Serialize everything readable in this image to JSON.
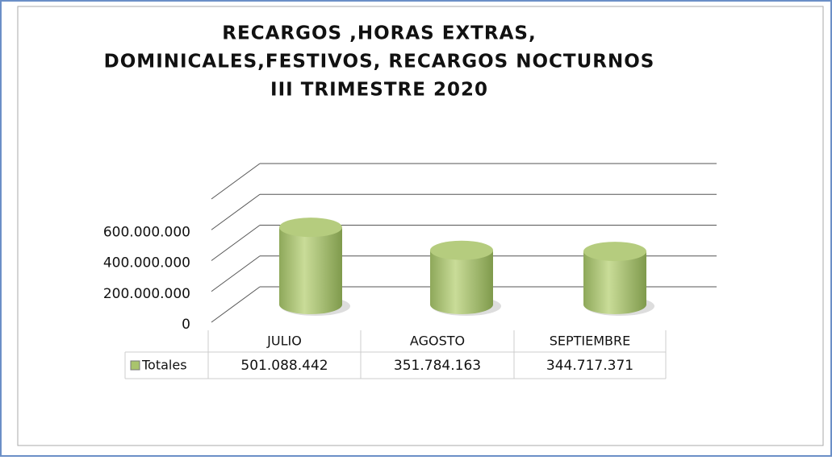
{
  "chart_data": {
    "type": "bar3d",
    "title": [
      "RECARGOS ,HORAS EXTRAS,",
      "DOMINICALES,FESTIVOS, RECARGOS NOCTURNOS",
      "III TRIMESTRE 2020"
    ],
    "categories": [
      "JULIO",
      "AGOSTO",
      "SEPTIEMBRE"
    ],
    "series": [
      {
        "name": "Totales",
        "color": "#a9c46c",
        "values": [
          501088442,
          351784163,
          344717371
        ],
        "value_labels": [
          "501.088.442",
          "351.784.163",
          "344.717.371"
        ]
      }
    ],
    "ylim": [
      0,
      800000000
    ],
    "yticks": [
      {
        "value": 0,
        "label": "0"
      },
      {
        "value": 200000000,
        "label": "200.000.000"
      },
      {
        "value": 400000000,
        "label": "400.000.000"
      },
      {
        "value": 600000000,
        "label": "600.000.000"
      }
    ],
    "grid": true
  }
}
